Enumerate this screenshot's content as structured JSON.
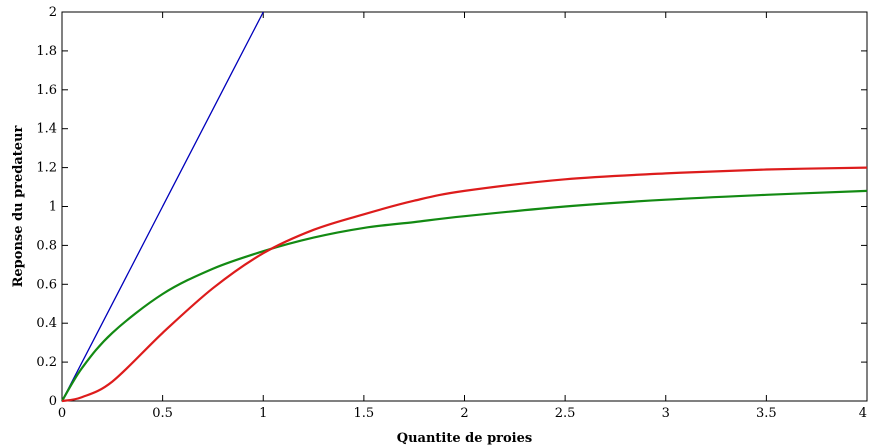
{
  "chart_data": {
    "type": "line",
    "title": "",
    "xlabel": "Quantite de proies",
    "ylabel": "Reponse du predateur",
    "xlim": [
      0,
      4
    ],
    "ylim": [
      0,
      2
    ],
    "grid": false,
    "x_ticks": [
      0,
      0.5,
      1,
      1.5,
      2,
      2.5,
      3,
      3.5,
      4
    ],
    "x_tick_labels": [
      "0",
      "0.5",
      "1",
      "1.5",
      "2",
      "2.5",
      "3",
      "3.5",
      "4"
    ],
    "y_ticks": [
      0,
      0.2,
      0.4,
      0.6,
      0.8,
      1,
      1.2,
      1.4,
      1.6,
      1.8,
      2
    ],
    "y_tick_labels": [
      "0",
      "0.2",
      "0.4",
      "0.6",
      "0.8",
      "1",
      "1.2",
      "1.4",
      "1.6",
      "1.8",
      "2"
    ],
    "series": [
      {
        "color": "#0000bb",
        "x": [
          0,
          0.25,
          0.5,
          0.75,
          1.0
        ],
        "y": [
          0,
          0.5,
          1.0,
          1.5,
          2.0
        ]
      },
      {
        "color": "#138a13",
        "x": [
          0,
          0.1,
          0.25,
          0.5,
          0.75,
          1.0,
          1.25,
          1.5,
          1.75,
          2.0,
          2.5,
          3.0,
          3.5,
          4.0
        ],
        "y": [
          0,
          0.17,
          0.35,
          0.55,
          0.68,
          0.77,
          0.84,
          0.89,
          0.92,
          0.95,
          1.0,
          1.035,
          1.06,
          1.08
        ]
      },
      {
        "color": "#dd1c1c",
        "x": [
          0,
          0.1,
          0.25,
          0.5,
          0.75,
          1.0,
          1.25,
          1.5,
          1.75,
          2.0,
          2.5,
          3.0,
          3.5,
          4.0
        ],
        "y": [
          0,
          0.02,
          0.1,
          0.35,
          0.58,
          0.76,
          0.88,
          0.96,
          1.03,
          1.08,
          1.14,
          1.17,
          1.19,
          1.2
        ]
      }
    ]
  }
}
